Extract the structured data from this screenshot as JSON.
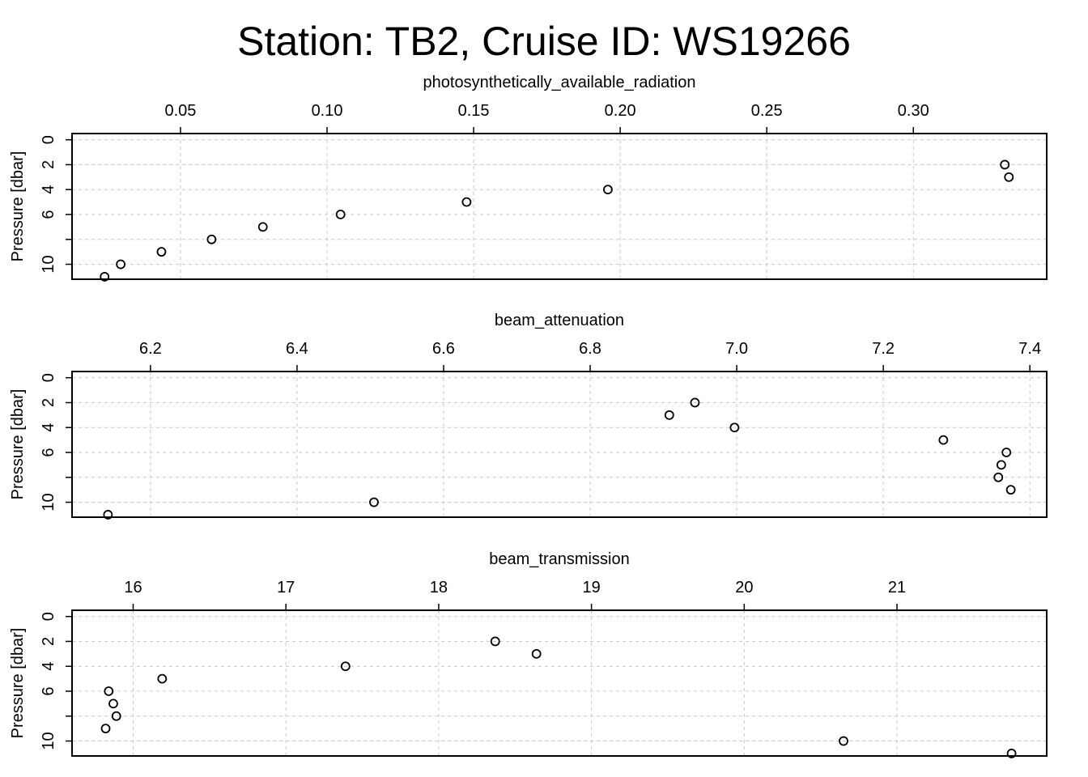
{
  "figure": {
    "title": "Station: TB2, Cruise ID: WS19266"
  },
  "chart_data": [
    {
      "type": "scatter",
      "xlabel": "photosynthetically_available_radiation",
      "ylabel": "Pressure [dbar]",
      "xlim": [
        0.013,
        0.3455
      ],
      "ylim": [
        11.2,
        -0.5
      ],
      "x_ticks": [
        0.05,
        0.1,
        0.15,
        0.2,
        0.25,
        0.3
      ],
      "x_tick_labels": [
        "0.05",
        "0.10",
        "0.15",
        "0.20",
        "0.25",
        "0.30"
      ],
      "y_ticks": [
        0,
        2,
        4,
        6,
        8,
        10
      ],
      "y_tick_labels": [
        "0",
        "2",
        "4",
        "6",
        "",
        "10"
      ],
      "grid": true,
      "points": [
        {
          "x": 0.3312,
          "y": 2
        },
        {
          "x": 0.3326,
          "y": 3
        },
        {
          "x": 0.1958,
          "y": 4
        },
        {
          "x": 0.1476,
          "y": 5
        },
        {
          "x": 0.1046,
          "y": 6
        },
        {
          "x": 0.0781,
          "y": 7
        },
        {
          "x": 0.0606,
          "y": 8
        },
        {
          "x": 0.0435,
          "y": 9
        },
        {
          "x": 0.0296,
          "y": 10
        },
        {
          "x": 0.0241,
          "y": 11
        }
      ]
    },
    {
      "type": "scatter",
      "xlabel": "beam_attenuation",
      "ylabel": "Pressure [dbar]",
      "xlim": [
        6.093,
        7.423
      ],
      "ylim": [
        11.2,
        -0.5
      ],
      "x_ticks": [
        6.2,
        6.4,
        6.6,
        6.8,
        7.0,
        7.2,
        7.4
      ],
      "x_tick_labels": [
        "6.2",
        "6.4",
        "6.6",
        "6.8",
        "7.0",
        "7.2",
        "7.4"
      ],
      "y_ticks": [
        0,
        2,
        4,
        6,
        8,
        10
      ],
      "y_tick_labels": [
        "0",
        "2",
        "4",
        "6",
        "",
        "10"
      ],
      "grid": true,
      "points": [
        {
          "x": 6.943,
          "y": 2
        },
        {
          "x": 6.908,
          "y": 3
        },
        {
          "x": 6.997,
          "y": 4
        },
        {
          "x": 7.282,
          "y": 5
        },
        {
          "x": 7.368,
          "y": 6
        },
        {
          "x": 7.361,
          "y": 7
        },
        {
          "x": 7.357,
          "y": 8
        },
        {
          "x": 7.374,
          "y": 9
        },
        {
          "x": 6.505,
          "y": 10
        },
        {
          "x": 6.142,
          "y": 11
        }
      ]
    },
    {
      "type": "scatter",
      "xlabel": "beam_transmission",
      "ylabel": "Pressure [dbar]",
      "xlim": [
        15.6,
        21.98
      ],
      "ylim": [
        11.2,
        -0.5
      ],
      "x_ticks": [
        16,
        17,
        18,
        19,
        20,
        21
      ],
      "x_tick_labels": [
        "16",
        "17",
        "18",
        "19",
        "20",
        "21"
      ],
      "y_ticks": [
        0,
        2,
        4,
        6,
        8,
        10
      ],
      "y_tick_labels": [
        "0",
        "2",
        "4",
        "6",
        "",
        "10"
      ],
      "grid": true,
      "points": [
        {
          "x": 18.37,
          "y": 2
        },
        {
          "x": 18.64,
          "y": 3
        },
        {
          "x": 17.39,
          "y": 4
        },
        {
          "x": 16.19,
          "y": 5
        },
        {
          "x": 15.84,
          "y": 6
        },
        {
          "x": 15.87,
          "y": 7
        },
        {
          "x": 15.89,
          "y": 8
        },
        {
          "x": 15.82,
          "y": 9
        },
        {
          "x": 20.65,
          "y": 10
        },
        {
          "x": 21.75,
          "y": 11
        }
      ]
    }
  ]
}
